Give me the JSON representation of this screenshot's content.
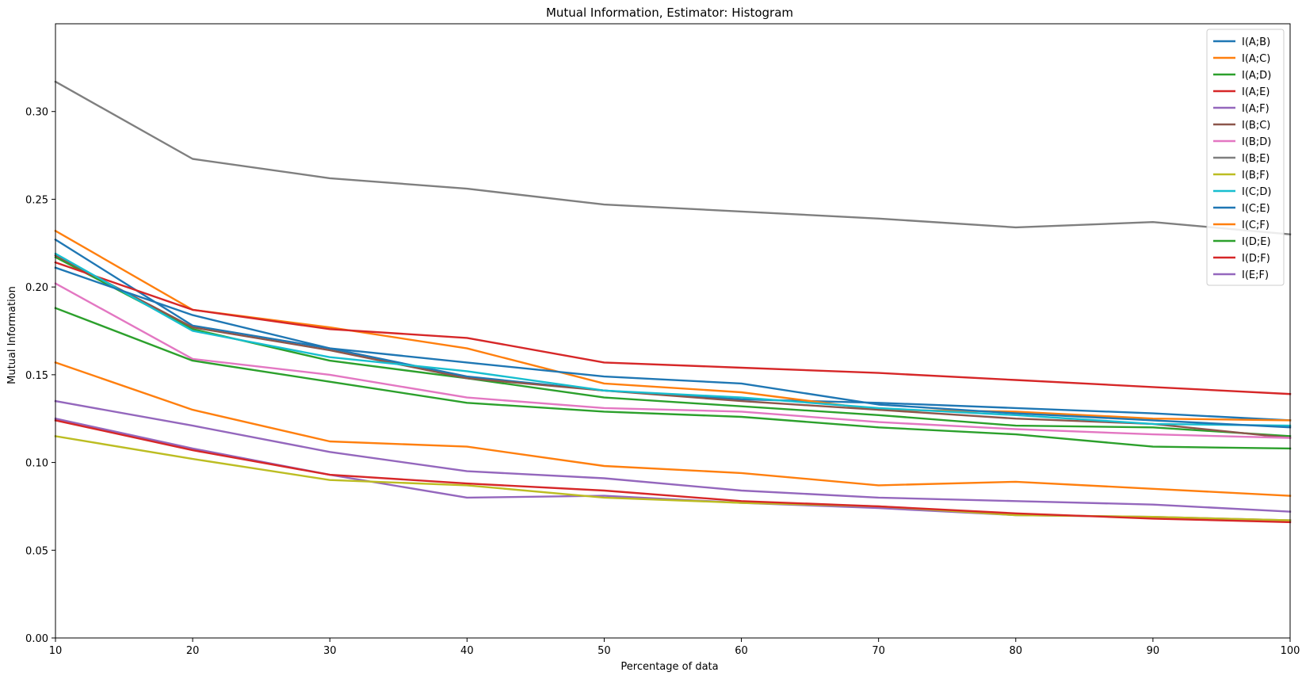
{
  "chart_data": {
    "type": "line",
    "title": "Mutual Information, Estimator: Histogram",
    "xlabel": "Percentage of data",
    "ylabel": "Mutual Information",
    "xlim": [
      10,
      100
    ],
    "ylim": [
      0,
      0.35
    ],
    "xticks": [
      "10",
      "20",
      "30",
      "40",
      "50",
      "60",
      "70",
      "80",
      "90",
      "100"
    ],
    "yticks": [
      "0.00",
      "0.05",
      "0.10",
      "0.15",
      "0.20",
      "0.25",
      "0.30"
    ],
    "grid": false,
    "legend_position": "top-right",
    "x": [
      10,
      20,
      30,
      40,
      50,
      60,
      70,
      80,
      90,
      100
    ],
    "series": [
      {
        "name": "I(A;B)",
        "color": "#1f77b4",
        "values": [
          0.227,
          0.178,
          0.165,
          0.149,
          0.141,
          0.136,
          0.134,
          0.131,
          0.128,
          0.124
        ]
      },
      {
        "name": "I(A;C)",
        "color": "#ff7f0e",
        "values": [
          0.232,
          0.187,
          0.177,
          0.165,
          0.145,
          0.14,
          0.13,
          0.129,
          0.125,
          0.124
        ]
      },
      {
        "name": "I(A;D)",
        "color": "#2ca02c",
        "values": [
          0.217,
          0.176,
          0.158,
          0.148,
          0.137,
          0.132,
          0.127,
          0.121,
          0.12,
          0.115
        ]
      },
      {
        "name": "I(A;E)",
        "color": "#d62728",
        "values": [
          0.214,
          0.187,
          0.176,
          0.171,
          0.157,
          0.154,
          0.151,
          0.147,
          0.143,
          0.139
        ]
      },
      {
        "name": "I(A;F)",
        "color": "#9467bd",
        "values": [
          0.125,
          0.108,
          0.093,
          0.08,
          0.081,
          0.077,
          0.074,
          0.07,
          0.069,
          0.067
        ]
      },
      {
        "name": "I(B;C)",
        "color": "#8c564b",
        "values": [
          0.218,
          0.177,
          0.164,
          0.148,
          0.141,
          0.135,
          0.13,
          0.125,
          0.122,
          0.114
        ]
      },
      {
        "name": "I(B;D)",
        "color": "#e377c2",
        "values": [
          0.202,
          0.159,
          0.15,
          0.137,
          0.131,
          0.129,
          0.123,
          0.119,
          0.116,
          0.114
        ]
      },
      {
        "name": "I(B;E)",
        "color": "#7f7f7f",
        "values": [
          0.317,
          0.273,
          0.262,
          0.256,
          0.247,
          0.243,
          0.239,
          0.234,
          0.237,
          0.23
        ]
      },
      {
        "name": "I(B;F)",
        "color": "#bcbd22",
        "values": [
          0.115,
          0.102,
          0.09,
          0.087,
          0.08,
          0.077,
          0.075,
          0.07,
          0.069,
          0.067
        ]
      },
      {
        "name": "I(C;D)",
        "color": "#17becf",
        "values": [
          0.219,
          0.175,
          0.16,
          0.152,
          0.141,
          0.137,
          0.131,
          0.127,
          0.122,
          0.121
        ]
      },
      {
        "name": "I(C;E)",
        "color": "#1f77b4",
        "values": [
          0.211,
          0.184,
          0.165,
          0.157,
          0.149,
          0.145,
          0.133,
          0.128,
          0.124,
          0.12
        ]
      },
      {
        "name": "I(C;F)",
        "color": "#ff7f0e",
        "values": [
          0.157,
          0.13,
          0.112,
          0.109,
          0.098,
          0.094,
          0.087,
          0.089,
          0.085,
          0.081
        ]
      },
      {
        "name": "I(D;E)",
        "color": "#2ca02c",
        "values": [
          0.188,
          0.158,
          0.146,
          0.134,
          0.129,
          0.126,
          0.12,
          0.116,
          0.109,
          0.108
        ]
      },
      {
        "name": "I(D;F)",
        "color": "#d62728",
        "values": [
          0.124,
          0.107,
          0.093,
          0.088,
          0.084,
          0.078,
          0.075,
          0.071,
          0.068,
          0.066
        ]
      },
      {
        "name": "I(E;F)",
        "color": "#9467bd",
        "values": [
          0.135,
          0.121,
          0.106,
          0.095,
          0.091,
          0.084,
          0.08,
          0.078,
          0.076,
          0.072
        ]
      }
    ]
  }
}
